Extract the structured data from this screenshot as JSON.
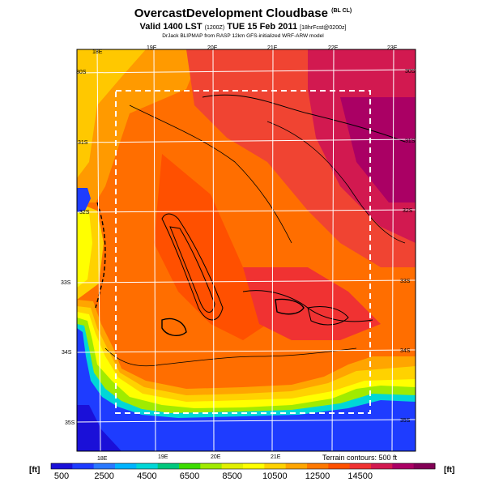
{
  "header": {
    "title": "OvercastDevelopment Cloudbase",
    "title_tag": "(BL CL)",
    "valid_prefix": "Valid 1400 LST",
    "valid_code": "(1200Z)",
    "valid_main": "TUE 15 Feb 2011",
    "valid_suffix": "[18hrFcst@0200z]",
    "credit": "DrJack BLIPMAP from RASP 12km GFS-initialized WRF-ARW model"
  },
  "axes": {
    "lon_top": [
      "18E",
      "19E",
      "20E",
      "21E",
      "22E",
      "23E"
    ],
    "lon_bottom": [
      "18E",
      "19E",
      "20E",
      "21E"
    ],
    "lat_right": [
      "30S",
      "31S",
      "32S",
      "33S",
      "34S",
      "35S"
    ],
    "lat_left": [
      "30S",
      "31S",
      "32S",
      "33S",
      "34S",
      "35S"
    ]
  },
  "legend": {
    "unit_left": "[ft]",
    "unit_right": "[ft]",
    "tick_labels": [
      "500",
      "2500",
      "4500",
      "6500",
      "8500",
      "10500",
      "12500",
      "14500"
    ],
    "terrain_note": "Terrain contours: 500 ft",
    "colors": [
      "#1a10d8",
      "#1e3cff",
      "#2a78ff",
      "#00b4ff",
      "#00d7d7",
      "#00c87d",
      "#3cdc00",
      "#a0eb00",
      "#e1f000",
      "#ffff00",
      "#ffd200",
      "#ffa500",
      "#ff7800",
      "#ff5000",
      "#f03232",
      "#d21950",
      "#aa0064",
      "#820055"
    ]
  }
}
